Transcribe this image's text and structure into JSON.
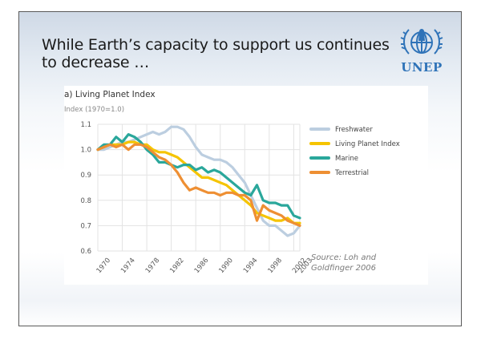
{
  "slide": {
    "title": "While Earth’s capacity to support us continues to decrease …",
    "logo_text": "UNEP",
    "source_note": "Source: Loh and Goldfinger 2006"
  },
  "colors": {
    "freshwater": "#bccee0",
    "living_planet_index": "#f5c400",
    "marine": "#2aa79b",
    "terrestrial": "#ee8f33",
    "logo": "#2f73b8"
  },
  "chart_data": {
    "type": "line",
    "title": "a) Living Planet Index",
    "ylabel": "Index (1970=1.0)",
    "xlabel": "",
    "ylim": [
      0.6,
      1.1
    ],
    "xlim": [
      1970,
      2003
    ],
    "yticks": [
      "0.6",
      "0.7",
      "0.8",
      "0.9",
      "1.0",
      "1.1"
    ],
    "xticks": [
      "1970",
      "1974",
      "1978",
      "1982",
      "1986",
      "1990",
      "1994",
      "1998",
      "2002",
      "2003"
    ],
    "grid": true,
    "legend_position": "right",
    "series": [
      {
        "name": "Freshwater",
        "color": "#bccee0",
        "x": [
          1970,
          1971,
          1972,
          1973,
          1974,
          1975,
          1976,
          1977,
          1978,
          1979,
          1980,
          1981,
          1982,
          1983,
          1984,
          1985,
          1986,
          1987,
          1988,
          1989,
          1990,
          1991,
          1992,
          1993,
          1994,
          1995,
          1996,
          1997,
          1998,
          1999,
          2000,
          2001,
          2002,
          2003
        ],
        "y": [
          1.0,
          1.0,
          1.01,
          1.02,
          1.03,
          1.03,
          1.04,
          1.05,
          1.06,
          1.07,
          1.06,
          1.07,
          1.09,
          1.09,
          1.08,
          1.05,
          1.01,
          0.98,
          0.97,
          0.96,
          0.96,
          0.95,
          0.93,
          0.9,
          0.87,
          0.82,
          0.77,
          0.72,
          0.7,
          0.7,
          0.68,
          0.66,
          0.67,
          0.7
        ]
      },
      {
        "name": "Living Planet Index",
        "color": "#f5c400",
        "x": [
          1970,
          1971,
          1972,
          1973,
          1974,
          1975,
          1976,
          1977,
          1978,
          1979,
          1980,
          1981,
          1982,
          1983,
          1984,
          1985,
          1986,
          1987,
          1988,
          1989,
          1990,
          1991,
          1992,
          1993,
          1994,
          1995,
          1996,
          1997,
          1998,
          1999,
          2000,
          2001,
          2002,
          2003
        ],
        "y": [
          1.0,
          1.01,
          1.02,
          1.02,
          1.02,
          1.03,
          1.03,
          1.02,
          1.02,
          1.0,
          0.99,
          0.99,
          0.98,
          0.97,
          0.95,
          0.93,
          0.91,
          0.89,
          0.89,
          0.88,
          0.87,
          0.86,
          0.84,
          0.82,
          0.8,
          0.78,
          0.75,
          0.74,
          0.73,
          0.72,
          0.72,
          0.73,
          0.71,
          0.71
        ]
      },
      {
        "name": "Marine",
        "color": "#2aa79b",
        "x": [
          1970,
          1971,
          1972,
          1973,
          1974,
          1975,
          1976,
          1977,
          1978,
          1979,
          1980,
          1981,
          1982,
          1983,
          1984,
          1985,
          1986,
          1987,
          1988,
          1989,
          1990,
          1991,
          1992,
          1993,
          1994,
          1995,
          1996,
          1997,
          1998,
          1999,
          2000,
          2001,
          2002,
          2003
        ],
        "y": [
          1.0,
          1.02,
          1.02,
          1.05,
          1.03,
          1.06,
          1.05,
          1.03,
          1.0,
          0.98,
          0.95,
          0.95,
          0.94,
          0.93,
          0.94,
          0.94,
          0.92,
          0.93,
          0.91,
          0.92,
          0.91,
          0.89,
          0.87,
          0.85,
          0.83,
          0.82,
          0.86,
          0.8,
          0.79,
          0.79,
          0.78,
          0.78,
          0.74,
          0.73
        ]
      },
      {
        "name": "Terrestrial",
        "color": "#ee8f33",
        "x": [
          1970,
          1971,
          1972,
          1973,
          1974,
          1975,
          1976,
          1977,
          1978,
          1979,
          1980,
          1981,
          1982,
          1983,
          1984,
          1985,
          1986,
          1987,
          1988,
          1989,
          1990,
          1991,
          1992,
          1993,
          1994,
          1995,
          1996,
          1997,
          1998,
          1999,
          2000,
          2001,
          2002,
          2003
        ],
        "y": [
          1.0,
          1.01,
          1.02,
          1.01,
          1.02,
          1.0,
          1.02,
          1.02,
          1.01,
          0.99,
          0.97,
          0.96,
          0.94,
          0.91,
          0.87,
          0.84,
          0.85,
          0.84,
          0.83,
          0.83,
          0.82,
          0.83,
          0.83,
          0.82,
          0.82,
          0.8,
          0.72,
          0.78,
          0.76,
          0.75,
          0.74,
          0.72,
          0.71,
          0.7
        ]
      }
    ]
  }
}
